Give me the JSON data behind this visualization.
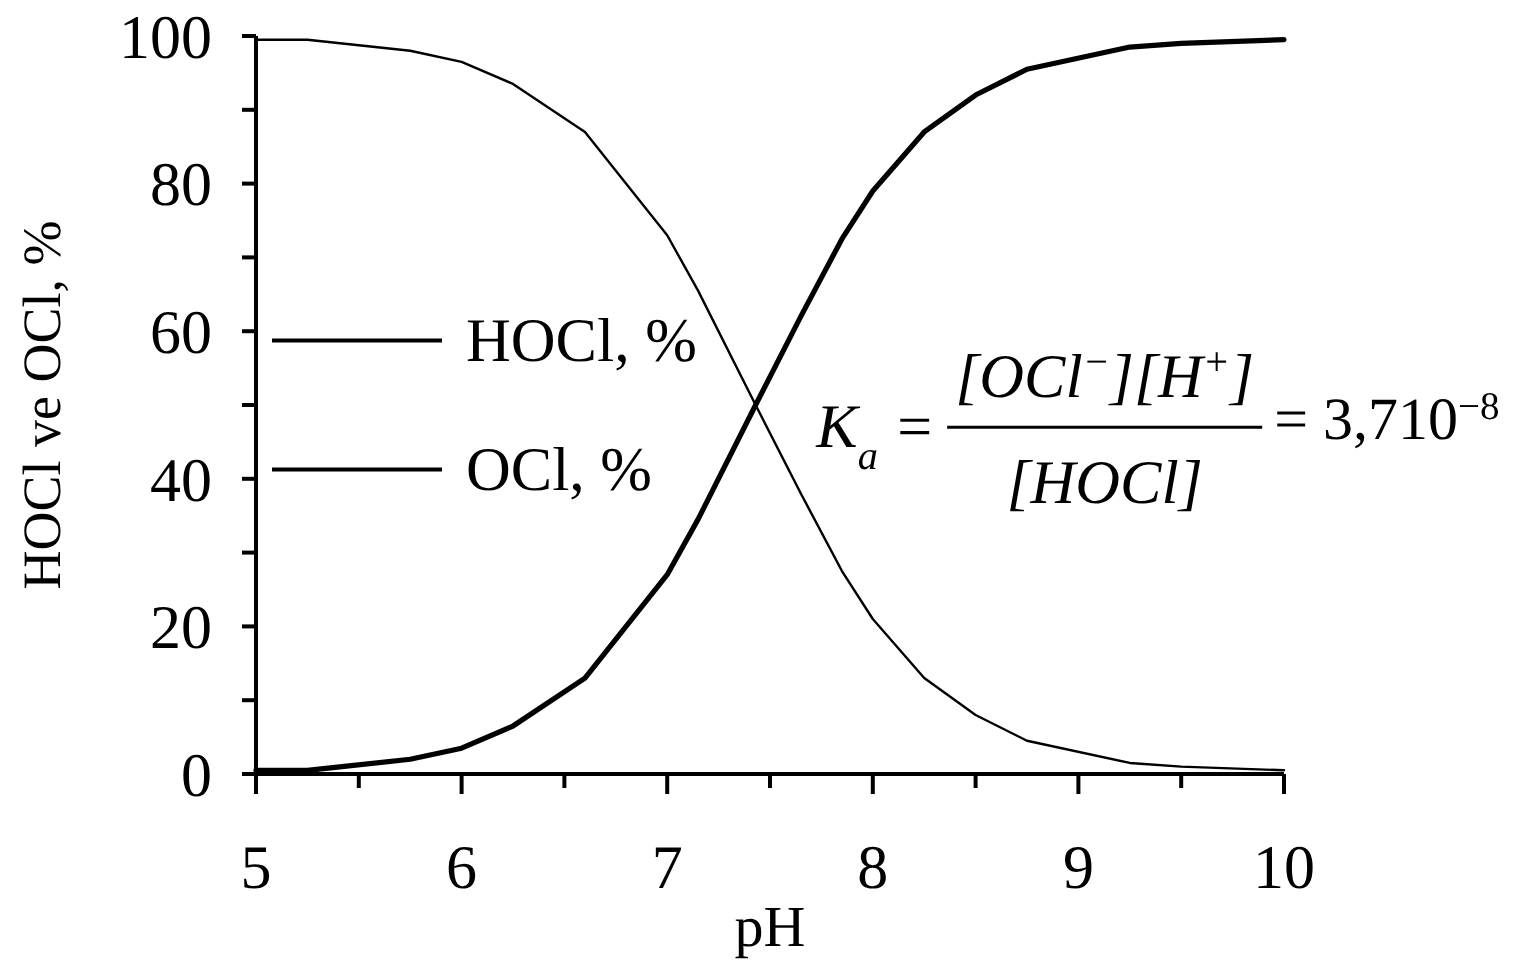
{
  "chart_data": {
    "type": "line",
    "xlabel": "pH",
    "ylabel": "HOCl ve OCl, %",
    "x": [
      5,
      5.25,
      5.75,
      6,
      6.25,
      6.6,
      7,
      7.15,
      7.43,
      7.65,
      7.85,
      8,
      8.25,
      8.5,
      8.75,
      9.25,
      9.5,
      10
    ],
    "series": [
      {
        "name": "HOCl, %",
        "color": "#000000",
        "values": [
          99.5,
          99.5,
          98,
          96.5,
          93.5,
          87,
          73,
          65.5,
          50,
          38,
          27.5,
          21,
          13,
          8,
          4.5,
          1.5,
          1,
          0.5
        ]
      },
      {
        "name": "OCl, %",
        "color": "#000000",
        "values": [
          0.5,
          0.5,
          2,
          3.5,
          6.5,
          13,
          27,
          34.5,
          50,
          62,
          72.5,
          79,
          87,
          92,
          95.5,
          98.5,
          99,
          99.5
        ]
      }
    ],
    "xlim": [
      5,
      10
    ],
    "ylim": [
      0,
      100
    ],
    "xticks": [
      5,
      {
        "value": 5.5,
        "label": null
      },
      6,
      {
        "value": 6.5,
        "label": null
      },
      7,
      {
        "value": 7.5,
        "label": null
      },
      8,
      {
        "value": 8.5,
        "label": null
      },
      9,
      {
        "value": 9.5,
        "label": null
      },
      10
    ],
    "yticks": [
      0,
      {
        "value": 10,
        "label": null
      },
      20,
      {
        "value": 30,
        "label": null
      },
      40,
      {
        "value": 50,
        "label": null
      },
      60,
      {
        "value": 70,
        "label": null
      },
      80,
      {
        "value": 90,
        "label": null
      },
      100
    ],
    "legend": "left",
    "line_style": "solid",
    "annotations": [
      "K$_{a}$ =",
      "[OCl$^{−}$][H$^{+}$]",
      "[HOCl]",
      "= 3,710$^{−8}$"
    ]
  }
}
